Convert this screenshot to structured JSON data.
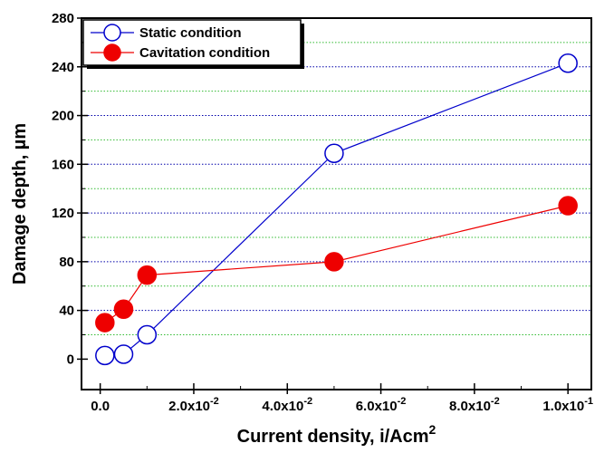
{
  "chart_data": {
    "type": "line",
    "xlabel_main": "Current density, i/Acm",
    "xlabel_sup": "2",
    "ylabel": "Damage depth, µm",
    "xlim": [
      -0.004,
      0.105
    ],
    "ylim": [
      -25,
      280
    ],
    "grid": "horizontal-dotted",
    "legend_position": "top-left",
    "y_ticks": [
      0,
      40,
      80,
      120,
      160,
      200,
      240,
      280
    ],
    "x_ticks": [
      {
        "value": 0.0,
        "mantissa": "0.0",
        "exp": ""
      },
      {
        "value": 0.02,
        "mantissa": "2.0x10",
        "exp": "-2"
      },
      {
        "value": 0.04,
        "mantissa": "4.0x10",
        "exp": "-2"
      },
      {
        "value": 0.06,
        "mantissa": "6.0x10",
        "exp": "-2"
      },
      {
        "value": 0.08,
        "mantissa": "8.0x10",
        "exp": "-2"
      },
      {
        "value": 0.1,
        "mantissa": "1.0x10",
        "exp": "-1"
      }
    ],
    "series": [
      {
        "name": "Static condition",
        "color": "#0000cc",
        "marker": "open-circle",
        "x": [
          0.001,
          0.005,
          0.01,
          0.05,
          0.1
        ],
        "y": [
          3,
          4,
          20,
          169,
          243
        ]
      },
      {
        "name": "Cavitation condition",
        "color": "#ee0000",
        "marker": "filled-circle",
        "x": [
          0.001,
          0.005,
          0.01,
          0.05,
          0.1
        ],
        "y": [
          30,
          41,
          69,
          80,
          126
        ]
      }
    ]
  }
}
